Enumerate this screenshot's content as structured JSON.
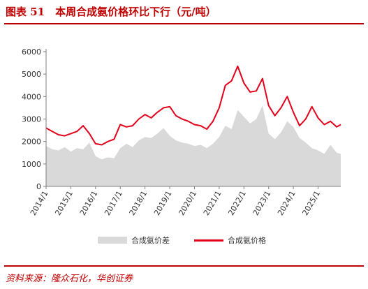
{
  "figure": {
    "title": "图表 51　本周合成氨价格环比下行（元/吨）",
    "source": "资料来源：隆众石化，华创证券"
  },
  "chart_data": {
    "type": "line",
    "title": "",
    "xlabel": "",
    "ylabel": "",
    "ylim": [
      0,
      6000
    ],
    "yticks": [
      0,
      1000,
      2000,
      3000,
      4000,
      5000,
      6000
    ],
    "xlim": [
      "2014-01",
      "2025-12"
    ],
    "xticks": [
      "2014/1",
      "2015/1",
      "2016/1",
      "2017/1",
      "2018/1",
      "2019/1",
      "2020/1",
      "2021/1",
      "2022/1",
      "2023/1",
      "2024/1",
      "2025/1"
    ],
    "grid": false,
    "legend": {
      "position": "bottom"
    },
    "series": [
      {
        "name": "合成氨价差",
        "kind": "area",
        "color": "#d9d9d9",
        "x": [
          "2014-01",
          "2014-04",
          "2014-07",
          "2014-10",
          "2015-01",
          "2015-04",
          "2015-07",
          "2015-10",
          "2016-01",
          "2016-04",
          "2016-07",
          "2016-10",
          "2017-01",
          "2017-04",
          "2017-07",
          "2017-10",
          "2018-01",
          "2018-04",
          "2018-07",
          "2018-10",
          "2019-01",
          "2019-04",
          "2019-07",
          "2019-10",
          "2020-01",
          "2020-04",
          "2020-07",
          "2020-10",
          "2021-01",
          "2021-04",
          "2021-07",
          "2021-10",
          "2022-01",
          "2022-04",
          "2022-07",
          "2022-10",
          "2023-01",
          "2023-04",
          "2023-07",
          "2023-10",
          "2024-01",
          "2024-04",
          "2024-07",
          "2024-10",
          "2025-01",
          "2025-04",
          "2025-07",
          "2025-10",
          "2025-12"
        ],
        "values": [
          1800,
          1650,
          1600,
          1750,
          1550,
          1700,
          1650,
          1950,
          1350,
          1200,
          1300,
          1250,
          1700,
          1900,
          1750,
          2050,
          2200,
          2150,
          2350,
          2600,
          2250,
          2050,
          1950,
          1900,
          1800,
          1850,
          1700,
          1900,
          2200,
          2700,
          2550,
          3400,
          3100,
          2800,
          3000,
          3600,
          2350,
          2100,
          2400,
          2900,
          2650,
          2150,
          1950,
          1700,
          1600,
          1450,
          1850,
          1500,
          1450
        ]
      },
      {
        "name": "合成氨价格",
        "kind": "line",
        "color": "#e3001b",
        "x": [
          "2014-01",
          "2014-04",
          "2014-07",
          "2014-10",
          "2015-01",
          "2015-04",
          "2015-07",
          "2015-10",
          "2016-01",
          "2016-04",
          "2016-07",
          "2016-10",
          "2017-01",
          "2017-04",
          "2017-07",
          "2017-10",
          "2018-01",
          "2018-04",
          "2018-07",
          "2018-10",
          "2019-01",
          "2019-04",
          "2019-07",
          "2019-10",
          "2020-01",
          "2020-04",
          "2020-07",
          "2020-10",
          "2021-01",
          "2021-04",
          "2021-07",
          "2021-10",
          "2022-01",
          "2022-04",
          "2022-07",
          "2022-10",
          "2023-01",
          "2023-04",
          "2023-07",
          "2023-10",
          "2024-01",
          "2024-04",
          "2024-07",
          "2024-10",
          "2025-01",
          "2025-04",
          "2025-07",
          "2025-10",
          "2025-12"
        ],
        "values": [
          2600,
          2450,
          2300,
          2250,
          2350,
          2450,
          2700,
          2350,
          1900,
          1850,
          2000,
          2100,
          2750,
          2650,
          2700,
          3000,
          3200,
          3050,
          3300,
          3500,
          3550,
          3150,
          3000,
          2900,
          2750,
          2700,
          2550,
          2900,
          3500,
          4500,
          4700,
          5350,
          4600,
          4200,
          4250,
          4800,
          3600,
          3150,
          3500,
          4000,
          3300,
          2700,
          3000,
          3550,
          3050,
          2750,
          2900,
          2650,
          2750
        ]
      }
    ]
  }
}
